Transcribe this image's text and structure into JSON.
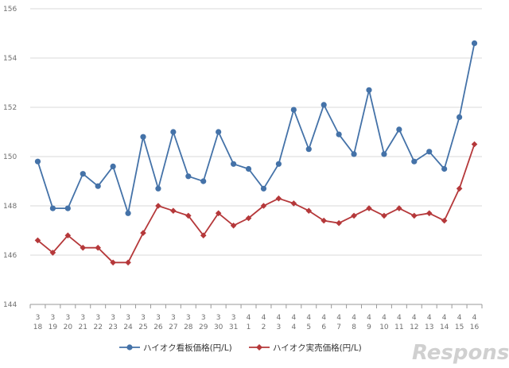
{
  "chart_data": {
    "type": "line",
    "title": "",
    "xlabel": "",
    "ylabel": "",
    "ylim": [
      144,
      156
    ],
    "yticks": [
      "144",
      "146",
      "148",
      "150",
      "152",
      "154",
      "156"
    ],
    "categories": [
      {
        "month": "3",
        "day": "18"
      },
      {
        "month": "3",
        "day": "19"
      },
      {
        "month": "3",
        "day": "20"
      },
      {
        "month": "3",
        "day": "21"
      },
      {
        "month": "3",
        "day": "22"
      },
      {
        "month": "3",
        "day": "23"
      },
      {
        "month": "3",
        "day": "24"
      },
      {
        "month": "3",
        "day": "25"
      },
      {
        "month": "3",
        "day": "26"
      },
      {
        "month": "3",
        "day": "27"
      },
      {
        "month": "3",
        "day": "28"
      },
      {
        "month": "3",
        "day": "29"
      },
      {
        "month": "3",
        "day": "30"
      },
      {
        "month": "3",
        "day": "31"
      },
      {
        "month": "4",
        "day": "1"
      },
      {
        "month": "4",
        "day": "2"
      },
      {
        "month": "4",
        "day": "3"
      },
      {
        "month": "4",
        "day": "4"
      },
      {
        "month": "4",
        "day": "5"
      },
      {
        "month": "4",
        "day": "6"
      },
      {
        "month": "4",
        "day": "7"
      },
      {
        "month": "4",
        "day": "8"
      },
      {
        "month": "4",
        "day": "9"
      },
      {
        "month": "4",
        "day": "10"
      },
      {
        "month": "4",
        "day": "11"
      },
      {
        "month": "4",
        "day": "12"
      },
      {
        "month": "4",
        "day": "13"
      },
      {
        "month": "4",
        "day": "14"
      },
      {
        "month": "4",
        "day": "15"
      },
      {
        "month": "4",
        "day": "16"
      }
    ],
    "series": [
      {
        "name": "ハイオク看板価格(円/L)",
        "color": "#4472a8",
        "marker": "circle",
        "values": [
          149.8,
          147.9,
          147.9,
          149.3,
          148.8,
          149.6,
          147.7,
          150.8,
          148.7,
          151.0,
          149.2,
          149.0,
          151.0,
          149.7,
          149.5,
          148.7,
          149.7,
          151.9,
          150.3,
          152.1,
          150.9,
          150.1,
          152.7,
          150.1,
          151.1,
          149.8,
          150.2,
          149.5,
          151.6,
          154.6
        ]
      },
      {
        "name": "ハイオク実売価格(円/L)",
        "color": "#b5383a",
        "marker": "diamond",
        "values": [
          146.6,
          146.1,
          146.8,
          146.3,
          146.3,
          145.7,
          145.7,
          146.9,
          148.0,
          147.8,
          147.6,
          146.8,
          147.7,
          147.2,
          147.5,
          148.0,
          148.3,
          148.1,
          147.8,
          147.4,
          147.3,
          147.6,
          147.9,
          147.6,
          147.9,
          147.6,
          147.7,
          147.4,
          148.7,
          150.5
        ]
      }
    ],
    "legend_position": "bottom-center",
    "grid": true
  },
  "watermark": {
    "text": "Response."
  }
}
